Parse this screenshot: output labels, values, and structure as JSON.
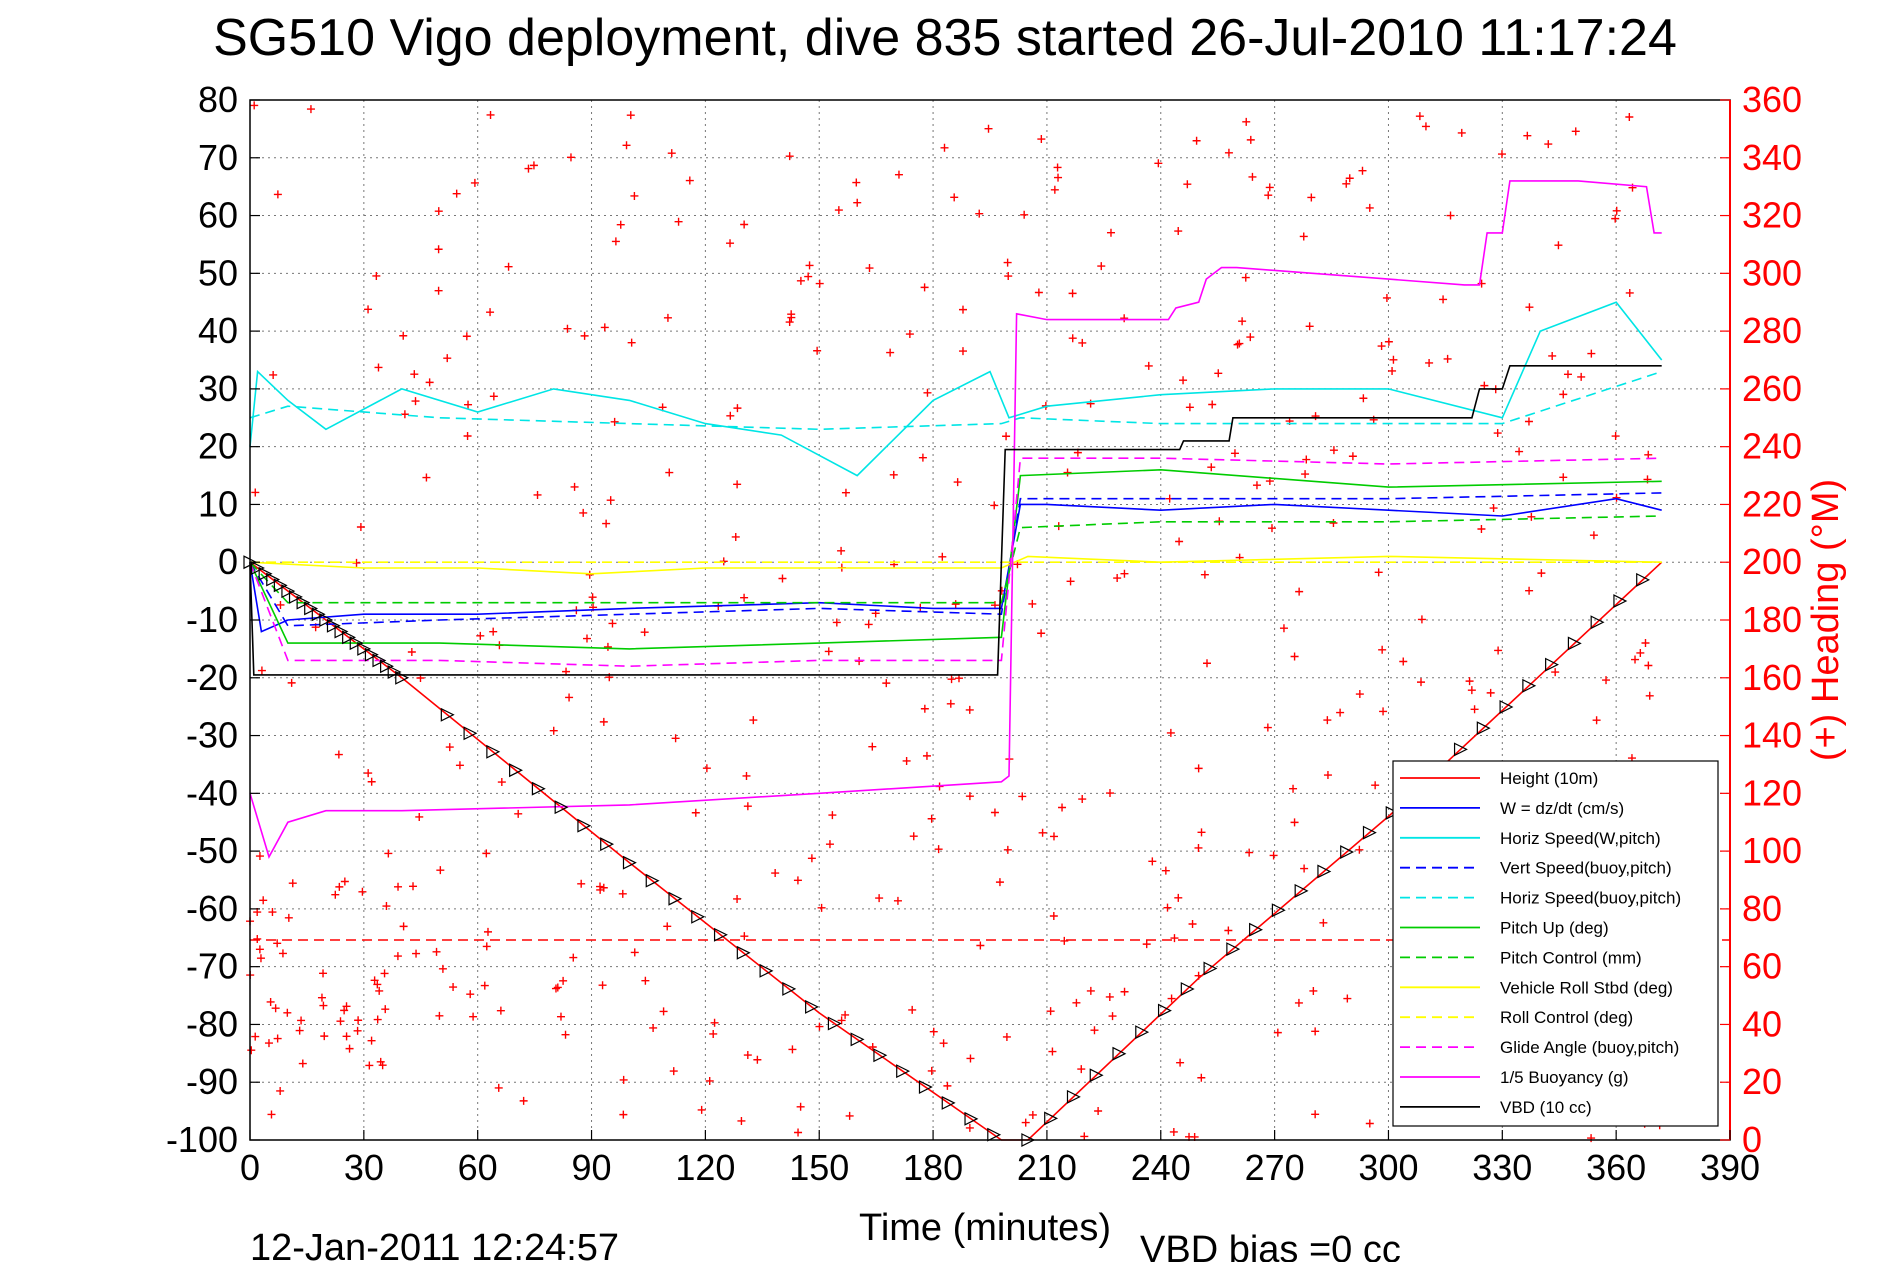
{
  "chart_data": {
    "type": "line",
    "title": "SG510 Vigo deployment, dive 835 started 26-Jul-2010 11:17:24",
    "xlabel": "Time (minutes)",
    "ylabel": "",
    "y2label": "(+) Heading (°M)",
    "xlim": [
      0,
      390
    ],
    "ylim": [
      -100,
      80
    ],
    "y2lim": [
      0,
      360
    ],
    "xticks": [
      0,
      30,
      60,
      90,
      120,
      150,
      180,
      210,
      240,
      270,
      300,
      330,
      360,
      390
    ],
    "yticks": [
      80,
      70,
      60,
      50,
      40,
      30,
      20,
      10,
      0,
      -10,
      -20,
      -30,
      -40,
      -50,
      -60,
      -70,
      -80,
      -90,
      -100
    ],
    "y2ticks": [
      360,
      340,
      320,
      300,
      280,
      260,
      240,
      220,
      200,
      180,
      160,
      140,
      120,
      100,
      80,
      60,
      40,
      20,
      0
    ],
    "grid": true,
    "legend_position": "bottom-right",
    "footer_left": "12-Jan-2011 12:24:57",
    "footer_right": "VBD bias =0 cc",
    "series": [
      {
        "name": "Height (10m)",
        "color": "#ff0000",
        "dash": "solid",
        "x": [
          0,
          40,
          100,
          150,
          198,
          205,
          250,
          300,
          372
        ],
        "y": [
          0,
          -20,
          -52,
          -78,
          -100,
          -100,
          -72,
          -44,
          0
        ]
      },
      {
        "name": "W = dz/dt (cm/s)",
        "color": "#0000ff",
        "dash": "solid",
        "x": [
          0,
          3,
          10,
          30,
          60,
          100,
          150,
          180,
          198,
          203,
          210,
          240,
          270,
          300,
          330,
          360,
          372
        ],
        "y": [
          0,
          -12,
          -10,
          -9,
          -9,
          -8,
          -7,
          -8,
          -8,
          10,
          10,
          9,
          10,
          9,
          8,
          11,
          9
        ]
      },
      {
        "name": "Horiz Speed(W,pitch)",
        "color": "#00e5e5",
        "dash": "solid",
        "x": [
          0,
          2,
          10,
          20,
          40,
          60,
          80,
          100,
          120,
          140,
          160,
          180,
          195,
          200,
          210,
          240,
          270,
          300,
          330,
          340,
          360,
          372
        ],
        "y": [
          20,
          33,
          28,
          23,
          30,
          26,
          30,
          28,
          24,
          22,
          15,
          28,
          33,
          25,
          27,
          29,
          30,
          30,
          25,
          40,
          45,
          35
        ]
      },
      {
        "name": "Vert Speed(buoy,pitch)",
        "color": "#0000ff",
        "dash": "dashed",
        "x": [
          0,
          10,
          50,
          100,
          150,
          198,
          203,
          240,
          300,
          372
        ],
        "y": [
          0,
          -11,
          -10,
          -9,
          -8,
          -9,
          11,
          11,
          11,
          12
        ]
      },
      {
        "name": "Horiz Speed(buoy,pitch)",
        "color": "#00e5e5",
        "dash": "dashed",
        "x": [
          0,
          10,
          50,
          100,
          150,
          198,
          203,
          240,
          300,
          330,
          372
        ],
        "y": [
          25,
          27,
          25,
          24,
          23,
          24,
          25,
          24,
          24,
          24,
          33
        ]
      },
      {
        "name": "Pitch Up (deg)",
        "color": "#00cc00",
        "dash": "solid",
        "x": [
          0,
          10,
          50,
          100,
          150,
          198,
          203,
          240,
          300,
          372
        ],
        "y": [
          0,
          -14,
          -14,
          -15,
          -14,
          -13,
          15,
          16,
          13,
          14
        ]
      },
      {
        "name": "Pitch Control (mm)",
        "color": "#00cc00",
        "dash": "dashed",
        "x": [
          0,
          10,
          50,
          100,
          150,
          198,
          203,
          240,
          300,
          372
        ],
        "y": [
          0,
          -7,
          -7,
          -7,
          -7,
          -7,
          6,
          7,
          7,
          8
        ]
      },
      {
        "name": "Vehicle Roll Stbd (deg)",
        "color": "#ffff00",
        "dash": "solid",
        "x": [
          0,
          30,
          60,
          90,
          120,
          150,
          180,
          198,
          205,
          240,
          300,
          372
        ],
        "y": [
          0,
          -1,
          -1,
          -2,
          -1,
          -1,
          -1,
          -1,
          1,
          0,
          1,
          0
        ]
      },
      {
        "name": "Roll Control (deg)",
        "color": "#ffff00",
        "dash": "dashed",
        "x": [
          0,
          40,
          100,
          150,
          198,
          205,
          300,
          372
        ],
        "y": [
          0,
          0,
          0,
          0,
          0,
          0,
          0,
          0
        ]
      },
      {
        "name": "Glide Angle (buoy,pitch)",
        "color": "#ff00ff",
        "dash": "dashed",
        "x": [
          0,
          10,
          50,
          100,
          150,
          198,
          203,
          240,
          300,
          372
        ],
        "y": [
          0,
          -17,
          -17,
          -18,
          -17,
          -17,
          18,
          18,
          17,
          18
        ]
      },
      {
        "name": "1/5 Buoyancy (g)",
        "color": "#ff00ff",
        "dash": "solid",
        "x": [
          0,
          5,
          10,
          20,
          40,
          100,
          150,
          198,
          200,
          202,
          210,
          230,
          242,
          244,
          250,
          252,
          254,
          256,
          260,
          280,
          300,
          320,
          324,
          326,
          330,
          332,
          350,
          368,
          370,
          372
        ],
        "y": [
          -40,
          -51,
          -45,
          -43,
          -43,
          -42,
          -40,
          -38,
          -37,
          43,
          42,
          42,
          42,
          44,
          45,
          49,
          50,
          51,
          51,
          50,
          49,
          48,
          48,
          57,
          57,
          66,
          66,
          65,
          57,
          57
        ]
      },
      {
        "name": "VBD (10 cc)",
        "color": "#000000",
        "dash": "solid",
        "x": [
          0,
          1,
          197,
          199,
          245,
          246,
          258,
          259,
          322,
          324,
          330,
          332,
          372
        ],
        "y": [
          0,
          -19.5,
          -19.5,
          19.5,
          19.5,
          21,
          21,
          25,
          25,
          30,
          30,
          34,
          34
        ]
      }
    ]
  }
}
